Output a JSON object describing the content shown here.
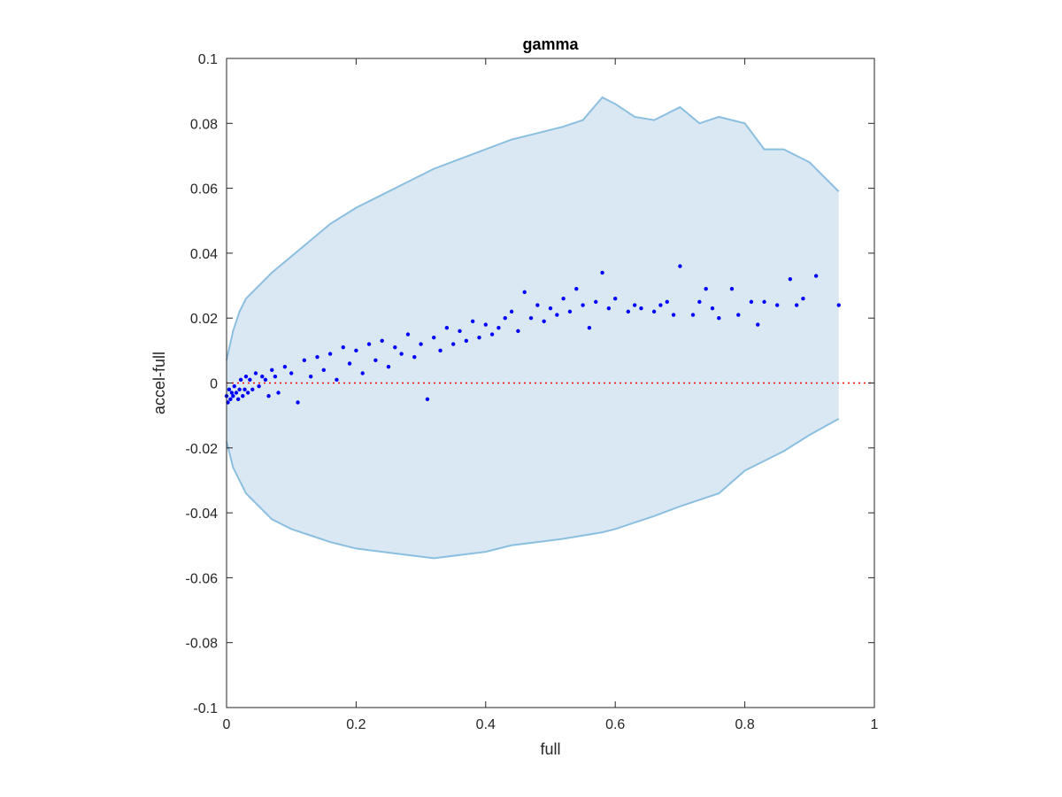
{
  "chart_data": {
    "type": "scatter",
    "title": "gamma",
    "xlabel": "full",
    "ylabel": "accel-full",
    "xlim": [
      0,
      1
    ],
    "ylim": [
      -0.1,
      0.1
    ],
    "x_ticks": [
      0,
      0.2,
      0.4,
      0.6,
      0.8,
      1
    ],
    "x_tick_labels": [
      "0",
      "0.2",
      "0.4",
      "0.6",
      "0.8",
      "1"
    ],
    "y_ticks": [
      -0.1,
      -0.08,
      -0.06,
      -0.04,
      -0.02,
      0,
      0.02,
      0.04,
      0.06,
      0.08,
      0.1
    ],
    "y_tick_labels": [
      "-0.1",
      "-0.08",
      "-0.06",
      "-0.04",
      "-0.02",
      "0",
      "0.02",
      "0.04",
      "0.06",
      "0.08",
      "0.1"
    ],
    "grid": false,
    "reference_line": {
      "y": 0,
      "style": "dotted",
      "color": "#ff0000"
    },
    "colors": {
      "band_fill": "#dae8f4",
      "band_line": "#8bbfe0",
      "points": "#0000ff",
      "axes": "#262626"
    },
    "band": {
      "x": [
        0,
        0.01,
        0.02,
        0.03,
        0.05,
        0.07,
        0.1,
        0.13,
        0.16,
        0.2,
        0.24,
        0.28,
        0.32,
        0.36,
        0.4,
        0.44,
        0.48,
        0.52,
        0.55,
        0.58,
        0.6,
        0.63,
        0.66,
        0.7,
        0.73,
        0.76,
        0.8,
        0.83,
        0.86,
        0.9,
        0.945
      ],
      "upper": [
        0.007,
        0.016,
        0.022,
        0.026,
        0.03,
        0.034,
        0.039,
        0.044,
        0.049,
        0.054,
        0.058,
        0.062,
        0.066,
        0.069,
        0.072,
        0.075,
        0.077,
        0.079,
        0.081,
        0.088,
        0.086,
        0.082,
        0.081,
        0.085,
        0.08,
        0.082,
        0.08,
        0.072,
        0.072,
        0.068,
        0.059
      ],
      "lower": [
        -0.018,
        -0.026,
        -0.03,
        -0.034,
        -0.038,
        -0.042,
        -0.045,
        -0.047,
        -0.049,
        -0.051,
        -0.052,
        -0.053,
        -0.054,
        -0.053,
        -0.052,
        -0.05,
        -0.049,
        -0.048,
        -0.047,
        -0.046,
        -0.045,
        -0.043,
        -0.041,
        -0.038,
        -0.036,
        -0.034,
        -0.027,
        -0.024,
        -0.021,
        -0.016,
        -0.011
      ]
    },
    "series": [
      {
        "x": [
          0,
          0.002,
          0.004,
          0.006,
          0.008,
          0.01,
          0.012,
          0.015,
          0.018,
          0.02,
          0.022,
          0.025,
          0.028,
          0.03,
          0.033,
          0.036,
          0.04,
          0.045,
          0.05,
          0.055,
          0.06,
          0.065,
          0.07,
          0.075,
          0.08,
          0.09,
          0.1,
          0.11,
          0.12,
          0.13,
          0.14,
          0.15,
          0.16,
          0.17,
          0.18,
          0.19,
          0.2,
          0.21,
          0.22,
          0.23,
          0.24,
          0.25,
          0.26,
          0.27,
          0.28,
          0.29,
          0.3,
          0.31,
          0.32,
          0.33,
          0.34,
          0.35,
          0.36,
          0.37,
          0.38,
          0.39,
          0.4,
          0.41,
          0.42,
          0.43,
          0.44,
          0.45,
          0.46,
          0.47,
          0.48,
          0.49,
          0.5,
          0.51,
          0.52,
          0.53,
          0.54,
          0.55,
          0.56,
          0.57,
          0.58,
          0.59,
          0.6,
          0.62,
          0.63,
          0.64,
          0.66,
          0.67,
          0.68,
          0.69,
          0.7,
          0.72,
          0.73,
          0.74,
          0.75,
          0.76,
          0.78,
          0.79,
          0.81,
          0.82,
          0.83,
          0.85,
          0.87,
          0.88,
          0.89,
          0.91,
          0.945
        ],
        "y": [
          -0.004,
          -0.006,
          -0.002,
          -0.005,
          -0.003,
          -0.004,
          -0.001,
          -0.003,
          -0.005,
          -0.002,
          0.001,
          -0.004,
          -0.002,
          0.002,
          -0.003,
          0.001,
          -0.002,
          0.003,
          -0.001,
          0.002,
          0.001,
          -0.004,
          0.004,
          0.002,
          -0.003,
          0.005,
          0.003,
          -0.006,
          0.007,
          0.002,
          0.008,
          0.004,
          0.009,
          0.001,
          0.011,
          0.006,
          0.01,
          0.003,
          0.012,
          0.007,
          0.013,
          0.005,
          0.011,
          0.009,
          0.015,
          0.008,
          0.012,
          -0.005,
          0.014,
          0.01,
          0.017,
          0.012,
          0.016,
          0.013,
          0.019,
          0.014,
          0.018,
          0.015,
          0.017,
          0.02,
          0.022,
          0.016,
          0.028,
          0.02,
          0.024,
          0.019,
          0.023,
          0.021,
          0.026,
          0.022,
          0.029,
          0.024,
          0.017,
          0.025,
          0.034,
          0.023,
          0.026,
          0.022,
          0.024,
          0.023,
          0.022,
          0.024,
          0.025,
          0.021,
          0.036,
          0.021,
          0.025,
          0.029,
          0.023,
          0.02,
          0.029,
          0.021,
          0.025,
          0.018,
          0.025,
          0.024,
          0.032,
          0.024,
          0.026,
          0.033,
          0.024
        ]
      }
    ]
  }
}
